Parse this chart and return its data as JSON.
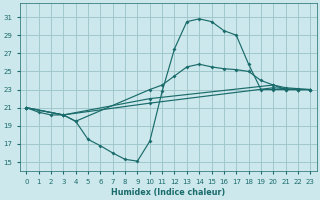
{
  "xlabel": "Humidex (Indice chaleur)",
  "bg_color": "#cce8ec",
  "grid_color": "#a0c8cc",
  "line_color": "#1a6b6b",
  "xlim": [
    -0.5,
    23.5
  ],
  "ylim": [
    14,
    32.5
  ],
  "xticks": [
    0,
    1,
    2,
    3,
    4,
    5,
    6,
    7,
    8,
    9,
    10,
    11,
    12,
    13,
    14,
    15,
    16,
    17,
    18,
    19,
    20,
    21,
    22,
    23
  ],
  "yticks": [
    15,
    17,
    19,
    21,
    23,
    25,
    27,
    29,
    31
  ],
  "series1": [
    [
      0,
      21.0
    ],
    [
      1,
      20.5
    ],
    [
      2,
      20.2
    ],
    [
      3,
      20.2
    ],
    [
      4,
      19.5
    ],
    [
      5,
      17.5
    ],
    [
      6,
      16.8
    ],
    [
      7,
      16.0
    ],
    [
      8,
      15.3
    ],
    [
      9,
      15.1
    ],
    [
      10,
      17.3
    ],
    [
      11,
      22.8
    ],
    [
      12,
      27.5
    ],
    [
      13,
      30.5
    ],
    [
      14,
      30.8
    ],
    [
      15,
      30.5
    ],
    [
      16,
      29.5
    ],
    [
      17,
      29.0
    ],
    [
      18,
      25.8
    ],
    [
      19,
      23.0
    ],
    [
      20,
      23.0
    ],
    [
      21,
      23.0
    ],
    [
      22,
      23.0
    ],
    [
      23,
      23.0
    ]
  ],
  "series2": [
    [
      0,
      21.0
    ],
    [
      3,
      20.2
    ],
    [
      4,
      19.5
    ],
    [
      10,
      23.0
    ],
    [
      11,
      23.5
    ],
    [
      12,
      24.5
    ],
    [
      13,
      25.5
    ],
    [
      14,
      25.8
    ],
    [
      15,
      25.5
    ],
    [
      16,
      25.3
    ],
    [
      17,
      25.2
    ],
    [
      18,
      25.0
    ],
    [
      19,
      24.0
    ],
    [
      20,
      23.5
    ],
    [
      21,
      23.0
    ],
    [
      22,
      23.0
    ],
    [
      23,
      23.0
    ]
  ],
  "series3": [
    [
      0,
      21.0
    ],
    [
      3,
      20.2
    ],
    [
      10,
      22.0
    ],
    [
      20,
      23.5
    ],
    [
      21,
      23.2
    ],
    [
      22,
      23.1
    ],
    [
      23,
      23.0
    ]
  ],
  "series4": [
    [
      0,
      21.0
    ],
    [
      3,
      20.2
    ],
    [
      10,
      21.5
    ],
    [
      20,
      23.2
    ],
    [
      21,
      23.1
    ],
    [
      22,
      23.0
    ],
    [
      23,
      23.0
    ]
  ]
}
